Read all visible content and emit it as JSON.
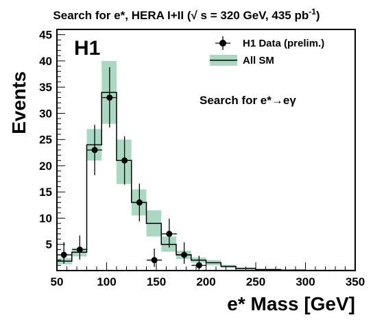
{
  "chart_data": {
    "type": "histogram",
    "title_main": "Search for e*, HERA I+II (",
    "title_sqrt": "√",
    "title_mid": " s = 320 GeV, 435 pb",
    "title_sup": "-1",
    "title_end": ")",
    "xlabel": "e* Mass [GeV]",
    "ylabel": "Events",
    "logo": "H1",
    "annotation": "Search for e*→eγ",
    "xlim": [
      50,
      350
    ],
    "ylim": [
      0,
      46
    ],
    "xticks": [
      50,
      100,
      150,
      200,
      250,
      300,
      350
    ],
    "yticks": [
      5,
      10,
      15,
      20,
      25,
      30,
      35,
      40,
      45
    ],
    "legend": {
      "position": "top-right",
      "data_label": "H1 Data (prelim.)",
      "sm_label": "All SM"
    },
    "bin_edges": [
      50,
      65,
      80,
      95,
      110,
      125,
      140,
      155,
      170,
      185,
      200,
      215,
      230,
      250,
      275,
      300,
      350
    ],
    "sm_values": [
      1.8,
      3.5,
      24,
      34,
      21,
      13,
      9,
      5,
      3,
      2,
      1.5,
      0.8,
      0.4,
      0.2,
      0.1,
      0.05
    ],
    "sm_band_low": [
      1.2,
      2.7,
      21,
      28,
      16.5,
      10.5,
      6.5,
      3.6,
      2.2,
      1.5,
      1.0,
      0.5,
      0.2,
      0.1,
      0.05,
      0.02
    ],
    "sm_band_high": [
      2.4,
      4.3,
      27,
      40,
      25,
      15.5,
      11.5,
      6.5,
      3.8,
      2.5,
      2.0,
      1.1,
      0.6,
      0.3,
      0.15,
      0.08
    ],
    "data_points": [
      {
        "x": 57,
        "y": 3,
        "err_low": 1.7,
        "err_high": 2.4
      },
      {
        "x": 73,
        "y": 4,
        "err_low": 1.9,
        "err_high": 2.7
      },
      {
        "x": 88,
        "y": 23,
        "err_low": 4.8,
        "err_high": 4.8
      },
      {
        "x": 103,
        "y": 33,
        "err_low": 5.7,
        "err_high": 5.8
      },
      {
        "x": 118,
        "y": 21,
        "err_low": 4.6,
        "err_high": 4.6
      },
      {
        "x": 133,
        "y": 13,
        "err_low": 3.6,
        "err_high": 3.6
      },
      {
        "x": 148,
        "y": 2,
        "err_low": 1.3,
        "err_high": 2.2
      },
      {
        "x": 163,
        "y": 7,
        "err_low": 2.6,
        "err_high": 2.9
      },
      {
        "x": 178,
        "y": 3,
        "err_low": 1.7,
        "err_high": 2.4
      },
      {
        "x": 193,
        "y": 1,
        "err_low": 0.8,
        "err_high": 1.8
      }
    ],
    "colors": {
      "band": "#aad8c3",
      "line": "#000000",
      "marker": "#000000"
    }
  }
}
